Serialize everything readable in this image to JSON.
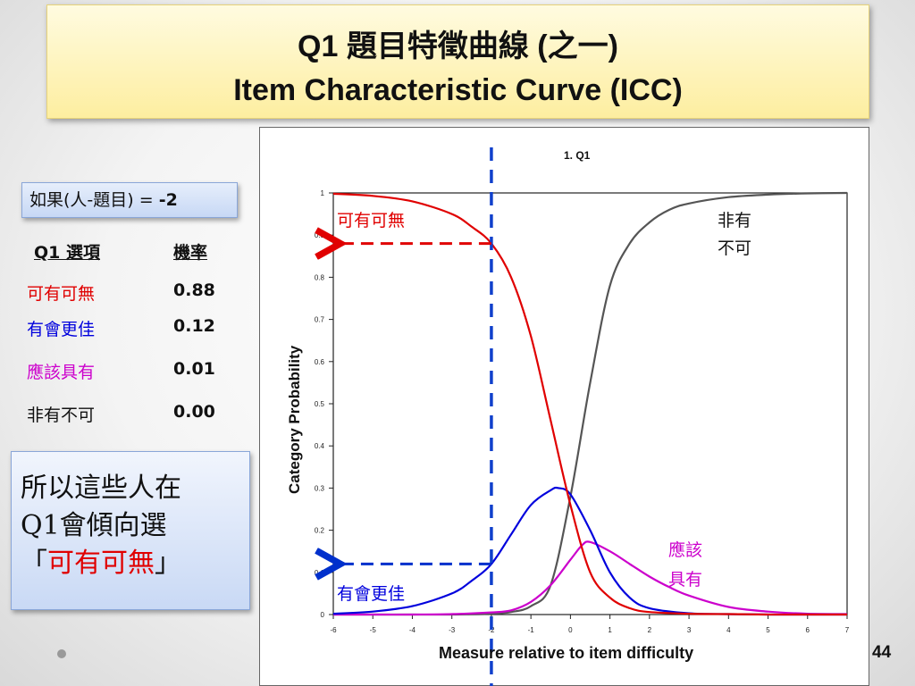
{
  "title": {
    "line1": "Q1 題目特徵曲線 (之一)",
    "line2": "Item Characteristic Curve (ICC)"
  },
  "condition": {
    "label": "如果(人-題目) = ",
    "value": "-2"
  },
  "table": {
    "header_option": "Q1 選項",
    "header_prob": "機率",
    "rows": [
      {
        "option": "可有可無",
        "prob": "0.88",
        "color": "#e00000"
      },
      {
        "option": "有會更佳",
        "prob": "0.12",
        "color": "#0000dd"
      },
      {
        "option": "應該具有",
        "prob": "0.01",
        "color": "#cc00cc"
      },
      {
        "option": "非有不可",
        "prob": "0.00",
        "color": "#111111"
      }
    ]
  },
  "conclusion": {
    "line1": "所以這些人在",
    "line2": "Q1會傾向選",
    "open_quote": "「",
    "highlight": "可有可無",
    "close_quote": "」"
  },
  "page_number": "44",
  "chart_data": {
    "type": "line",
    "title": "1. Q1",
    "xlabel": "Measure relative to item difficulty",
    "ylabel": "Category Probability",
    "xlim": [
      -6,
      7
    ],
    "ylim": [
      0,
      1
    ],
    "xticks": [
      -6,
      -5,
      -4,
      -3,
      -2,
      -1,
      0,
      1,
      2,
      3,
      4,
      5,
      6,
      7
    ],
    "yticks": [
      0,
      0.1,
      0.2,
      0.3,
      0.4,
      0.5,
      0.6,
      0.7,
      0.8,
      0.9,
      1
    ],
    "grid": false,
    "series": [
      {
        "name": "可有可無",
        "color": "#e00000",
        "x": [
          -6,
          -5,
          -4,
          -3,
          -2.5,
          -2,
          -1.5,
          -1,
          -0.5,
          0,
          0.5,
          1,
          1.5,
          2,
          3,
          4,
          5,
          6,
          7
        ],
        "y": [
          0.998,
          0.993,
          0.98,
          0.95,
          0.92,
          0.88,
          0.8,
          0.66,
          0.46,
          0.26,
          0.1,
          0.04,
          0.015,
          0.006,
          0.002,
          0.001,
          0,
          0,
          0
        ]
      },
      {
        "name": "有會更佳",
        "color": "#0000dd",
        "x": [
          -6,
          -5,
          -4,
          -3,
          -2.5,
          -2,
          -1.5,
          -1,
          -0.5,
          -0.3,
          0,
          0.5,
          1,
          1.5,
          2,
          3,
          4,
          5,
          6,
          7
        ],
        "y": [
          0.002,
          0.007,
          0.02,
          0.05,
          0.08,
          0.12,
          0.19,
          0.26,
          0.295,
          0.3,
          0.285,
          0.2,
          0.1,
          0.04,
          0.015,
          0.003,
          0.001,
          0,
          0,
          0
        ]
      },
      {
        "name": "應該具有",
        "color": "#cc00cc",
        "x": [
          -6,
          -5,
          -4,
          -3,
          -2,
          -1.5,
          -1,
          -0.5,
          0,
          0.3,
          0.5,
          1,
          1.5,
          2,
          2.5,
          3,
          4,
          5,
          6,
          7
        ],
        "y": [
          0,
          0,
          0,
          0.001,
          0.005,
          0.01,
          0.03,
          0.07,
          0.13,
          0.165,
          0.172,
          0.15,
          0.12,
          0.09,
          0.065,
          0.045,
          0.018,
          0.007,
          0.002,
          0.001
        ]
      },
      {
        "name": "非有不可",
        "color": "#555555",
        "x": [
          -6,
          -5,
          -4,
          -3,
          -2,
          -1.5,
          -1,
          -0.5,
          0,
          0.5,
          1,
          1.5,
          2,
          2.5,
          3,
          4,
          5,
          6,
          7
        ],
        "y": [
          0,
          0,
          0,
          0,
          0.002,
          0.006,
          0.02,
          0.07,
          0.28,
          0.55,
          0.78,
          0.88,
          0.93,
          0.96,
          0.975,
          0.99,
          0.996,
          0.999,
          1
        ]
      }
    ],
    "marker_x": -2,
    "annotations": [
      {
        "text": "可有可無",
        "color": "#e00000"
      },
      {
        "text": "非有",
        "color": "#111111"
      },
      {
        "text": "不可",
        "color": "#111111"
      },
      {
        "text": "應該",
        "color": "#cc00cc"
      },
      {
        "text": "具有",
        "color": "#cc00cc"
      },
      {
        "text": "有會更佳",
        "color": "#0000dd"
      }
    ]
  }
}
